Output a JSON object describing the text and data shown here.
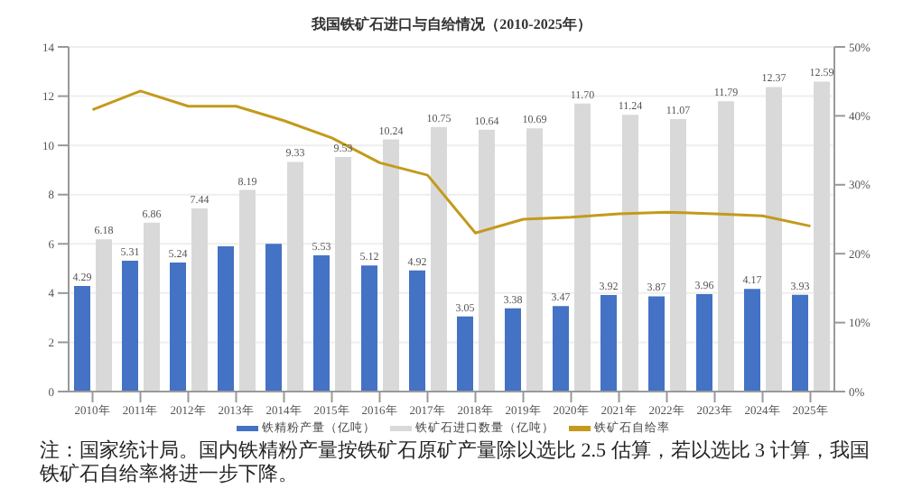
{
  "chart_data": {
    "type": "bar",
    "title": "我国铁矿石进口与自给情况（2010-2025年）",
    "categories": [
      "2010年",
      "2011年",
      "2012年",
      "2013年",
      "2014年",
      "2015年",
      "2016年",
      "2017年",
      "2018年",
      "2019年",
      "2020年",
      "2021年",
      "2022年",
      "2023年",
      "2024年",
      "2025年"
    ],
    "series": [
      {
        "name": "铁精粉产量（亿吨）",
        "type": "bar",
        "color": "#4472c4",
        "values": [
          4.29,
          5.31,
          5.24,
          5.9,
          6.0,
          5.53,
          5.12,
          4.92,
          3.05,
          3.38,
          3.47,
          3.92,
          3.87,
          3.96,
          4.17,
          3.93
        ],
        "value_labels": [
          "4.29",
          "5.31",
          "5.24",
          null,
          null,
          "5.53",
          "5.12",
          "4.92",
          "3.05",
          "3.38",
          "3.47",
          "3.92",
          "3.87",
          "3.96",
          "4.17",
          "3.93"
        ]
      },
      {
        "name": "铁矿石进口数量（亿吨）",
        "type": "bar",
        "color": "#d9d9d9",
        "values": [
          6.18,
          6.86,
          7.44,
          8.19,
          9.33,
          9.53,
          10.24,
          10.75,
          10.64,
          10.69,
          11.7,
          11.24,
          11.07,
          11.79,
          12.37,
          12.59
        ],
        "value_labels": [
          "6.18",
          "6.86",
          "7.44",
          "8.19",
          "9.33",
          "9.53",
          "10.24",
          "10.75",
          "10.64",
          "10.69",
          "11.70",
          "11.24",
          "11.07",
          "11.79",
          "12.37",
          "12.59"
        ]
      },
      {
        "name": "铁矿石自给率",
        "type": "line",
        "axis": "y2",
        "color": "#c49a1c",
        "values": [
          40.9,
          43.6,
          41.4,
          41.4,
          39.3,
          36.8,
          33.2,
          31.4,
          23,
          25,
          25.3,
          25.8,
          26,
          25.8,
          25.5,
          24
        ]
      }
    ],
    "ylim": [
      0,
      14
    ],
    "yticks": [
      0,
      2,
      4,
      6,
      8,
      10,
      12,
      14
    ],
    "y2lim": [
      0,
      50
    ],
    "y2ticks": [
      {
        "value": 0,
        "label": "0%"
      },
      {
        "value": 10,
        "label": "10%"
      },
      {
        "value": 20,
        "label": "20%"
      },
      {
        "value": 30,
        "label": "30%"
      },
      {
        "value": 40,
        "label": "40%"
      },
      {
        "value": 50,
        "label": "50%"
      }
    ],
    "grid": "y",
    "legend": "bottom",
    "marker": "none",
    "annotations": [
      "注：国家统计局。国内铁精粉产量按铁矿石原矿产量除以选比 2.5 估算，若以选比 3 计算，我国铁矿石自给率将进一步下降。"
    ]
  }
}
